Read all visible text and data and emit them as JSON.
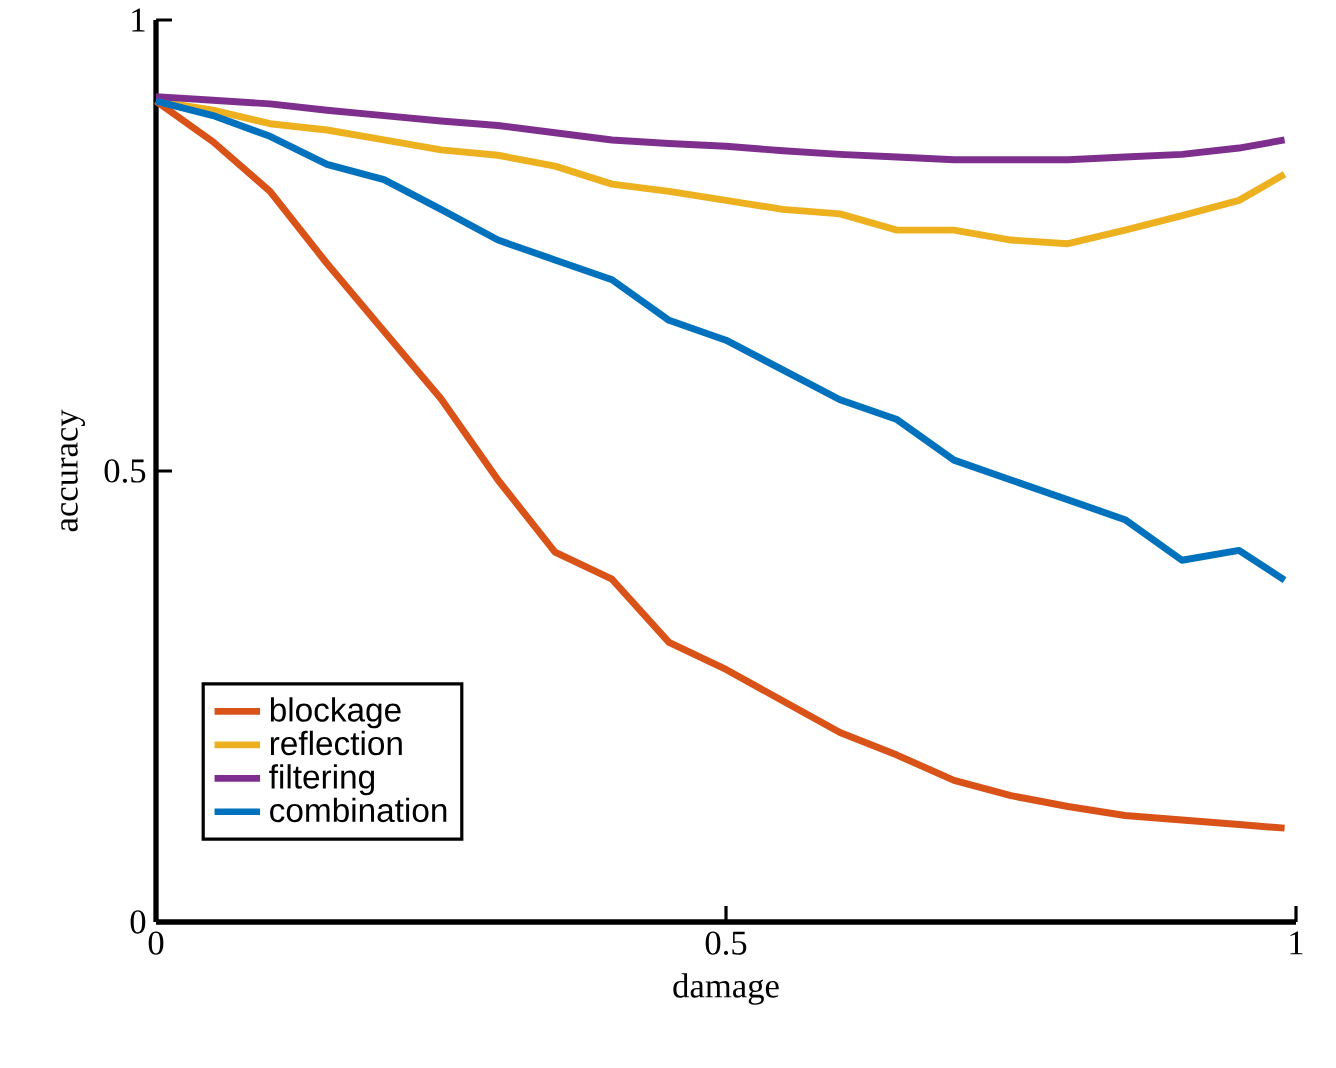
{
  "chart_data": {
    "type": "line",
    "xlabel": "damage",
    "ylabel": "accuracy",
    "x": [
      0,
      0.05,
      0.1,
      0.15,
      0.2,
      0.25,
      0.3,
      0.35,
      0.4,
      0.45,
      0.5,
      0.55,
      0.6,
      0.65,
      0.7,
      0.75,
      0.8,
      0.85,
      0.9,
      0.95,
      0.99
    ],
    "series": [
      {
        "name": "blockage",
        "color": "#d95319",
        "values": [
          0.91,
          0.865,
          0.81,
          0.73,
          0.655,
          0.58,
          0.49,
          0.41,
          0.38,
          0.31,
          0.28,
          0.245,
          0.21,
          0.185,
          0.157,
          0.14,
          0.128,
          0.118,
          0.113,
          0.108,
          0.104
        ]
      },
      {
        "name": "reflection",
        "color": "#edb120",
        "values": [
          0.91,
          0.9,
          0.885,
          0.878,
          0.867,
          0.856,
          0.85,
          0.838,
          0.818,
          0.81,
          0.8,
          0.79,
          0.785,
          0.767,
          0.767,
          0.756,
          0.752,
          0.767,
          0.783,
          0.8,
          0.829
        ]
      },
      {
        "name": "filtering",
        "color": "#7e2f8e",
        "values": [
          0.915,
          0.911,
          0.907,
          0.9,
          0.894,
          0.888,
          0.883,
          0.875,
          0.867,
          0.863,
          0.86,
          0.855,
          0.851,
          0.848,
          0.845,
          0.845,
          0.845,
          0.848,
          0.851,
          0.858,
          0.867
        ]
      },
      {
        "name": "combination",
        "color": "#0072bd",
        "values": [
          0.91,
          0.894,
          0.871,
          0.84,
          0.823,
          0.79,
          0.756,
          0.734,
          0.712,
          0.667,
          0.645,
          0.612,
          0.579,
          0.557,
          0.512,
          0.49,
          0.468,
          0.446,
          0.401,
          0.412,
          0.379
        ]
      }
    ],
    "xlim": [
      0,
      1
    ],
    "ylim": [
      0,
      1
    ],
    "xticks": [
      0,
      0.5,
      1
    ],
    "yticks": [
      0,
      0.5,
      1
    ],
    "legend": "bottom left",
    "grid": false,
    "marker": "none",
    "line_style": "solid"
  }
}
